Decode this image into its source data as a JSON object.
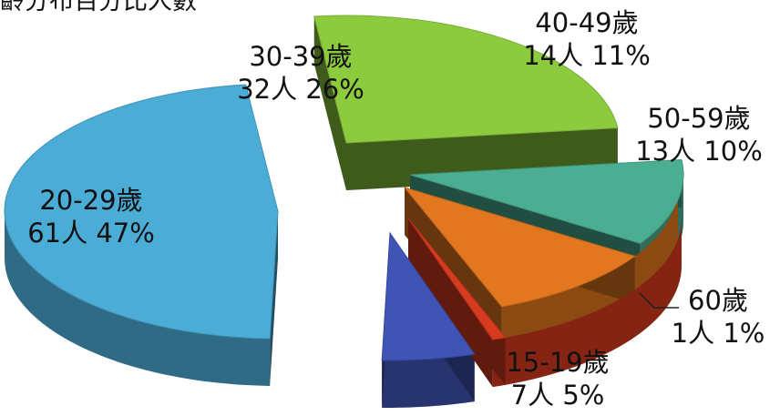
{
  "chart_data": {
    "type": "pie",
    "title": "年齡分布百分比人數",
    "slices": [
      {
        "category": "15-19歲",
        "count": 7,
        "percent": 5,
        "count_label": "7人",
        "pct_label": "5%",
        "color": "#3F54B5"
      },
      {
        "category": "20-29歲",
        "count": 61,
        "percent": 47,
        "count_label": "61人",
        "pct_label": "47%",
        "color": "#4BACD6"
      },
      {
        "category": "30-39歲",
        "count": 32,
        "percent": 26,
        "count_label": "32人",
        "pct_label": "26%",
        "color": "#8DCB3E"
      },
      {
        "category": "40-49歲",
        "count": 14,
        "percent": 11,
        "count_label": "14人",
        "pct_label": "11%",
        "color": "#4BAE93"
      },
      {
        "category": "50-59歲",
        "count": 13,
        "percent": 10,
        "count_label": "13人",
        "pct_label": "10%",
        "color": "#E2771F"
      },
      {
        "category": "60歲",
        "count": 1,
        "percent": 1,
        "count_label": "1人",
        "pct_label": "1%",
        "color": "#D63A1F"
      }
    ],
    "style": "3d-exploded",
    "legend": "none"
  }
}
